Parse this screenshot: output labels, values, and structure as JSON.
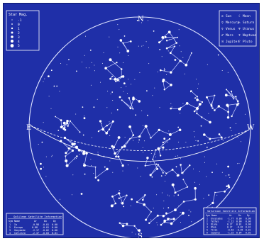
{
  "colors": {
    "background": "#1f2fa8",
    "ink": "#ffffff",
    "lines": "#c9d1ff"
  },
  "compass": {
    "north": "N",
    "south": "S",
    "east": "E",
    "west": "W"
  },
  "star_mag_legend": {
    "title": "Star Mag.",
    "entries": [
      "-1",
      "0",
      "1",
      "2",
      "3",
      "4",
      "5"
    ]
  },
  "planet_legend": {
    "items": [
      {
        "symbol": "⊙",
        "label": "Sun"
      },
      {
        "symbol": "☾",
        "label": "Moon"
      },
      {
        "symbol": "☿",
        "label": "Mercury"
      },
      {
        "symbol": "♄",
        "label": "Saturn"
      },
      {
        "symbol": "♀",
        "label": "Venus"
      },
      {
        "symbol": "♅",
        "label": "Uranus"
      },
      {
        "symbol": "♂",
        "label": "Mars"
      },
      {
        "symbol": "♆",
        "label": "Neptune"
      },
      {
        "symbol": "♃",
        "label": "Jupiter"
      },
      {
        "symbol": "♇",
        "label": "Pluto"
      }
    ]
  },
  "galilean_panel": {
    "title": "Galilean Satellite Information",
    "headers": [
      "Sym",
      "Name",
      "Ar",
      "Dx",
      "Dy"
    ],
    "rows": [
      [
        "1",
        "Io",
        "-0.98",
        "-0.01",
        "0.00"
      ],
      [
        "2",
        "Europa",
        "0.88",
        "-0.01",
        "0.00"
      ],
      [
        "3",
        "Ganymede",
        "-2.17",
        "-0.02",
        "0.00"
      ],
      [
        "4",
        "Callisto",
        "-2.37",
        "-0.03",
        "0.01"
      ]
    ]
  },
  "saturnian_panel": {
    "title": "Saturnian Satellite Information",
    "headers": [
      "Sym",
      "Name",
      "Ar",
      "Dx",
      "Dy"
    ],
    "rows": [
      [
        "1",
        "Enceladus",
        "-1.77",
        "0.00",
        "0.00"
      ],
      [
        "2",
        "Tethys",
        "-1.12",
        "0.00",
        "0.00"
      ],
      [
        "3",
        "Dione",
        "0.27",
        "0.01",
        "0.00"
      ],
      [
        "4",
        "Rhea",
        "0.27",
        "-0.02",
        "0.01"
      ],
      [
        "5",
        "Titan",
        "-0.63",
        "-0.05",
        "0.01"
      ],
      [
        "6",
        "Iapetus",
        "-1.25",
        "0.04",
        "0.02"
      ]
    ]
  }
}
